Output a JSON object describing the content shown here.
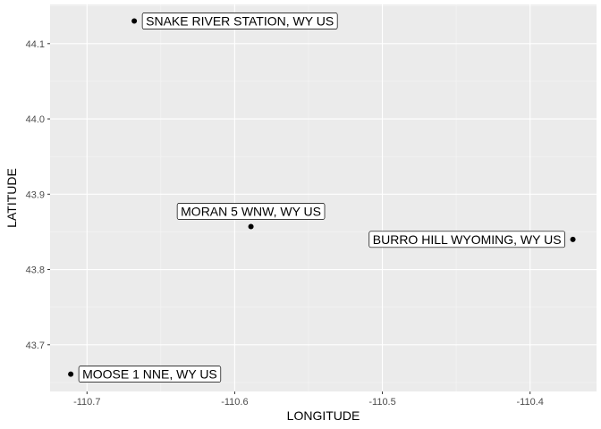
{
  "chart_data": {
    "type": "scatter",
    "xlabel": "LONGITUDE",
    "ylabel": "LATITUDE",
    "xlim": [
      -110.725,
      -110.355
    ],
    "ylim": [
      43.638,
      44.152
    ],
    "x_ticks": [
      -110.7,
      -110.6,
      -110.5,
      -110.4
    ],
    "y_ticks": [
      43.7,
      43.8,
      43.9,
      44.0,
      44.1
    ],
    "x_tick_labels": [
      "-110.7",
      "-110.6",
      "-110.5",
      "-110.4"
    ],
    "y_tick_labels": [
      "43.7",
      "43.8",
      "43.9",
      "44.0",
      "44.1"
    ],
    "grid": true,
    "points": [
      {
        "label": "SNAKE RIVER STATION, WY US",
        "x": -110.668,
        "y": 44.13,
        "label_side": "right"
      },
      {
        "label": "MORAN 5 WNW, WY US",
        "x": -110.589,
        "y": 43.857,
        "label_side": "above"
      },
      {
        "label": "BURRO HILL WYOMING, WY US",
        "x": -110.371,
        "y": 43.84,
        "label_side": "left"
      },
      {
        "label": "MOOSE 1 NNE, WY US",
        "x": -110.711,
        "y": 43.661,
        "label_side": "right"
      }
    ],
    "colors": {
      "panel": "#ebebeb",
      "grid_major": "#ffffff",
      "point": "#000000"
    }
  }
}
